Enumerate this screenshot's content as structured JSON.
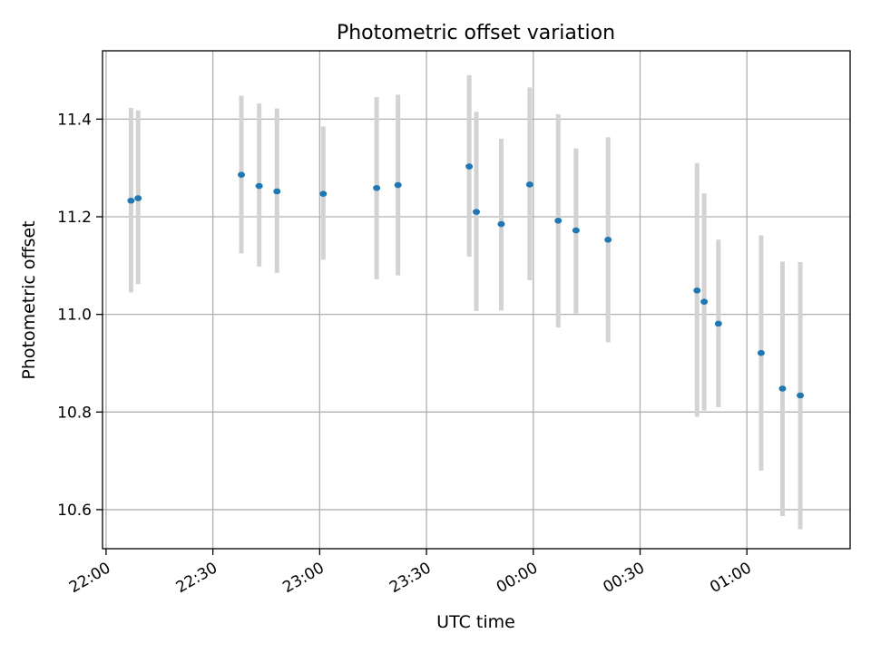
{
  "chart_data": {
    "type": "scatter",
    "title": "Photometric offset variation",
    "xlabel": "UTC time",
    "ylabel": "Photometric offset",
    "x_type": "time",
    "xlim": [
      "21:59",
      "01:29"
    ],
    "ylim": [
      10.52,
      11.54
    ],
    "x_ticks": [
      "22:00",
      "22:30",
      "23:00",
      "23:30",
      "00:00",
      "00:30",
      "01:00"
    ],
    "y_ticks": [
      10.6,
      10.8,
      11.0,
      11.2,
      11.4
    ],
    "y_tick_labels": [
      "10.6",
      "10.8",
      "11.0",
      "11.2",
      "11.4"
    ],
    "grid": true,
    "colors": {
      "marker": "#1f77b4",
      "errorbar": "#d3d3d3",
      "grid": "#b0b0b0"
    },
    "series": [
      {
        "marker": "point",
        "points": [
          {
            "x": "22:07",
            "y": 11.233,
            "err_low": 11.045,
            "err_high": 11.423
          },
          {
            "x": "22:09",
            "y": 11.238,
            "err_low": 11.062,
            "err_high": 11.418
          },
          {
            "x": "22:38",
            "y": 11.286,
            "err_low": 11.125,
            "err_high": 11.448
          },
          {
            "x": "22:43",
            "y": 11.263,
            "err_low": 11.098,
            "err_high": 11.432
          },
          {
            "x": "22:48",
            "y": 11.252,
            "err_low": 11.085,
            "err_high": 11.422
          },
          {
            "x": "23:01",
            "y": 11.247,
            "err_low": 11.112,
            "err_high": 11.385
          },
          {
            "x": "23:16",
            "y": 11.259,
            "err_low": 11.072,
            "err_high": 11.445
          },
          {
            "x": "23:22",
            "y": 11.265,
            "err_low": 11.08,
            "err_high": 11.45
          },
          {
            "x": "23:42",
            "y": 11.303,
            "err_low": 11.118,
            "err_high": 11.49
          },
          {
            "x": "23:44",
            "y": 11.21,
            "err_low": 11.007,
            "err_high": 11.415
          },
          {
            "x": "23:51",
            "y": 11.185,
            "err_low": 11.008,
            "err_high": 11.36
          },
          {
            "x": "23:59",
            "y": 11.266,
            "err_low": 11.07,
            "err_high": 11.465
          },
          {
            "x": "00:07",
            "y": 11.192,
            "err_low": 10.973,
            "err_high": 11.41
          },
          {
            "x": "00:12",
            "y": 11.172,
            "err_low": 11.002,
            "err_high": 11.34
          },
          {
            "x": "00:21",
            "y": 11.153,
            "err_low": 10.943,
            "err_high": 11.363
          },
          {
            "x": "00:46",
            "y": 11.049,
            "err_low": 10.79,
            "err_high": 11.31
          },
          {
            "x": "00:48",
            "y": 11.026,
            "err_low": 10.803,
            "err_high": 11.248
          },
          {
            "x": "00:52",
            "y": 10.981,
            "err_low": 10.81,
            "err_high": 11.153
          },
          {
            "x": "01:04",
            "y": 10.921,
            "err_low": 10.68,
            "err_high": 11.162
          },
          {
            "x": "01:10",
            "y": 10.848,
            "err_low": 10.587,
            "err_high": 11.108
          },
          {
            "x": "01:15",
            "y": 10.834,
            "err_low": 10.56,
            "err_high": 11.107
          }
        ]
      }
    ]
  }
}
